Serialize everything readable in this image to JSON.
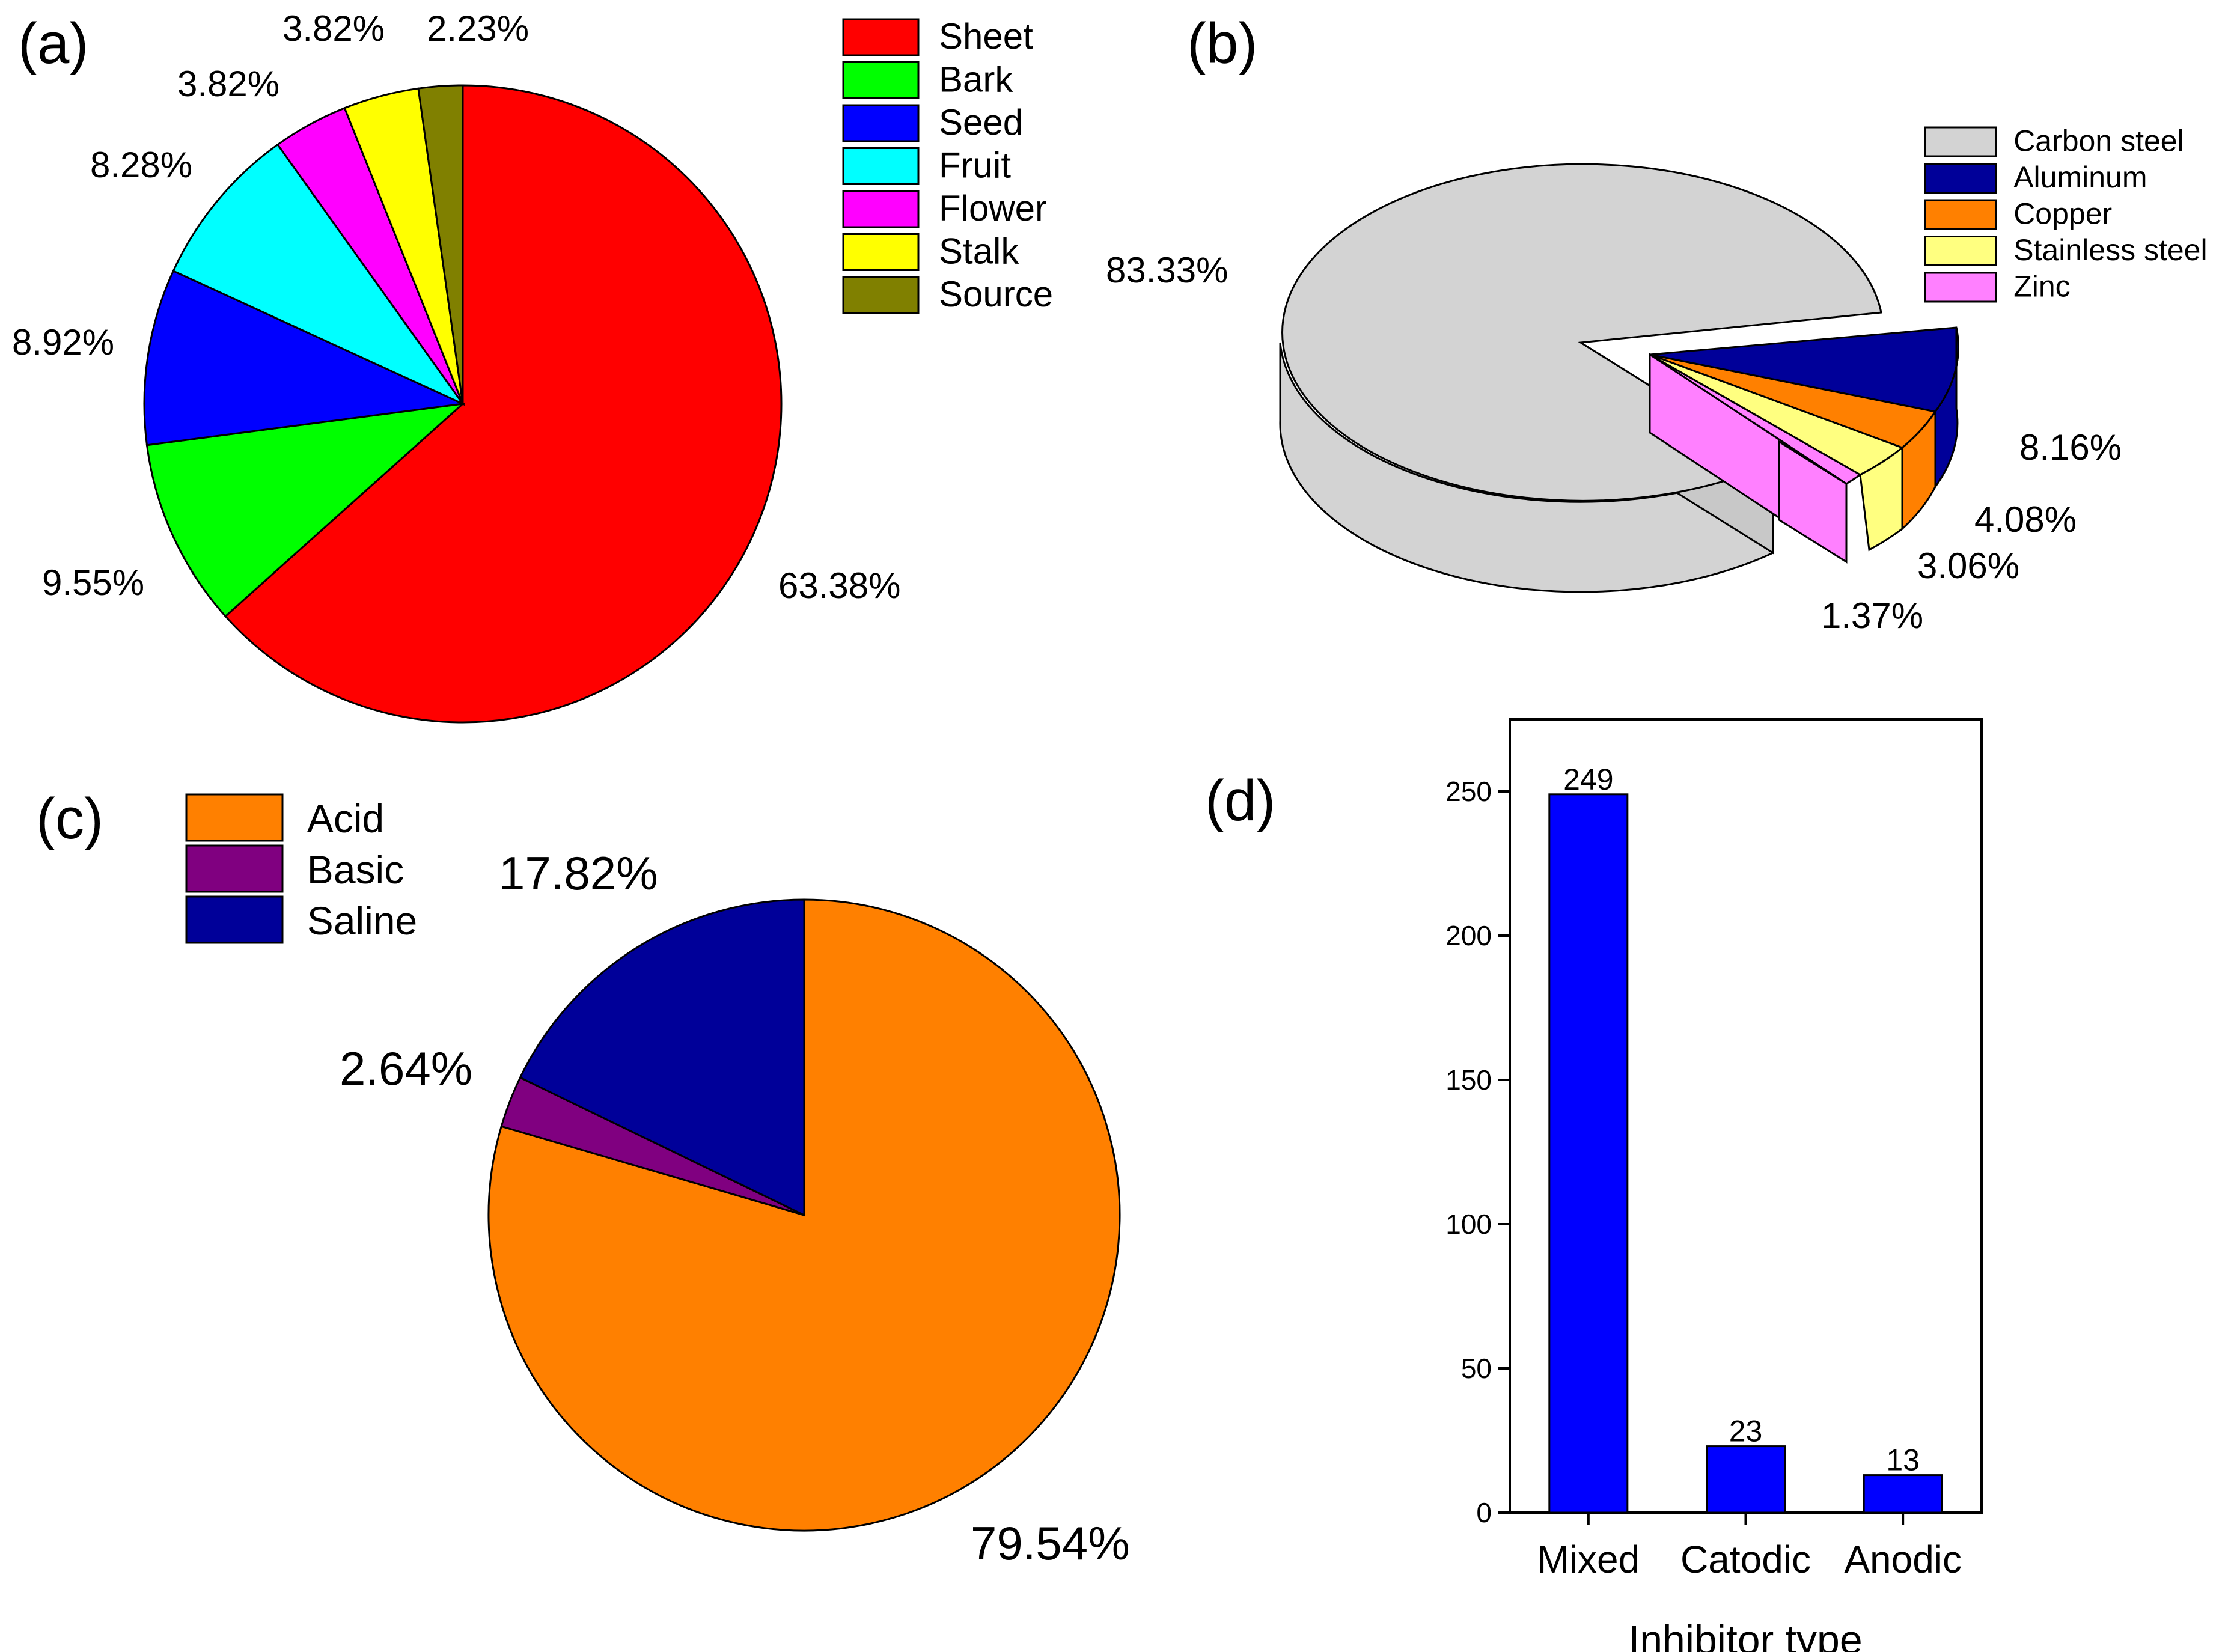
{
  "chart_data": [
    {
      "panel": "(a)",
      "type": "pie",
      "legend_position": "right",
      "slices": [
        {
          "label": "Sheet",
          "value": 63.38,
          "value_label": "63.38%",
          "color": "#FF0000"
        },
        {
          "label": "Bark",
          "value": 9.55,
          "value_label": "9.55%",
          "color": "#00FF00"
        },
        {
          "label": "Seed",
          "value": 8.92,
          "value_label": "8.92%",
          "color": "#0000FF"
        },
        {
          "label": "Fruit",
          "value": 8.28,
          "value_label": "8.28%",
          "color": "#00FFFF"
        },
        {
          "label": "Flower",
          "value": 3.82,
          "value_label": "3.82%",
          "color": "#FF00FF"
        },
        {
          "label": "Stalk",
          "value": 3.82,
          "value_label": "3.82%",
          "color": "#FFFF00"
        },
        {
          "label": "Source",
          "value": 2.23,
          "value_label": "2.23%",
          "color": "#808000"
        }
      ]
    },
    {
      "panel": "(b)",
      "type": "pie",
      "style": "3d-exploded",
      "legend_position": "top-right",
      "slices": [
        {
          "label": "Carbon steel",
          "value": 83.33,
          "value_label": "83.33%",
          "color": "#D3D3D3"
        },
        {
          "label": "Aluminum",
          "value": 8.16,
          "value_label": "8.16%",
          "color": "#000099"
        },
        {
          "label": "Copper",
          "value": 4.08,
          "value_label": "4.08%",
          "color": "#FF8000"
        },
        {
          "label": "Stainless steel",
          "value": 3.06,
          "value_label": "3.06%",
          "color": "#FFFF80"
        },
        {
          "label": "Zinc",
          "value": 1.37,
          "value_label": "1.37%",
          "color": "#FF80FF"
        }
      ]
    },
    {
      "panel": "(c)",
      "type": "pie",
      "legend_position": "top-left",
      "slices": [
        {
          "label": "Acid",
          "value": 79.54,
          "value_label": "79.54%",
          "color": "#FF8000"
        },
        {
          "label": "Basic",
          "value": 2.64,
          "value_label": "2.64%",
          "color": "#800080"
        },
        {
          "label": "Saline",
          "value": 17.82,
          "value_label": "17.82%",
          "color": "#000099"
        }
      ]
    },
    {
      "panel": "(d)",
      "type": "bar",
      "categories": [
        "Mixed",
        "Catodic",
        "Anodic"
      ],
      "values": [
        249,
        23,
        13
      ],
      "value_labels": [
        "249",
        "23",
        "13"
      ],
      "xlabel": "Inhibitor type",
      "ylabel": "",
      "ylim": [
        0,
        275
      ],
      "yticks": [
        0,
        50,
        100,
        150,
        200,
        250
      ],
      "ytick_labels": [
        "0",
        "50",
        "100",
        "150",
        "200",
        "250"
      ],
      "bar_color": "#0000FF",
      "grid": false
    }
  ]
}
